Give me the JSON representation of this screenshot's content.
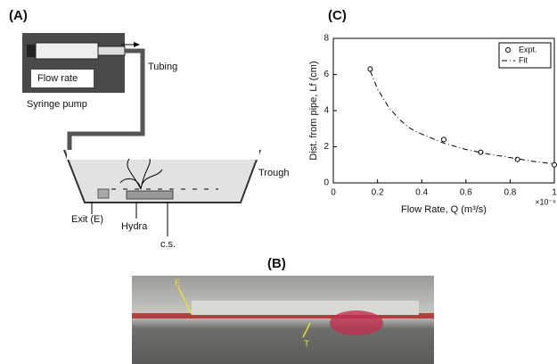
{
  "panels": {
    "a": "(A)",
    "b": "(B)",
    "c": "(C)"
  },
  "diagram": {
    "flow_rate": "Flow rate",
    "syringe_pump": "Syringe pump",
    "tubing": "Tubing",
    "trough": "Trough",
    "exit": "Exit (E)",
    "hydra": "Hydra",
    "cs": "c.s."
  },
  "photo": {
    "exit_label": "E",
    "hydra_label": "T"
  },
  "chart_data": {
    "type": "scatter",
    "xlabel": "Flow Rate, Q (m³/s)",
    "x_multiplier": "×10⁻⁶",
    "ylabel": "Dist. from pipe, Lf (cm)",
    "xlim": [
      0,
      1
    ],
    "xticks": [
      0,
      0.2,
      0.4,
      0.6,
      0.8,
      1
    ],
    "ylim": [
      0,
      8
    ],
    "yticks": [
      0,
      2,
      4,
      6,
      8
    ],
    "legend": "top-right",
    "series": [
      {
        "name": "Expt.",
        "color": "#000000",
        "marker": "circle",
        "x": [
          0.167,
          0.5,
          0.667,
          0.833,
          1
        ],
        "values": [
          6.3,
          2.4,
          1.7,
          1.3,
          1.0
        ]
      },
      {
        "name": "Fit",
        "color": "#000000",
        "linestyle": "dash-dot",
        "x": [
          0.167,
          0.2,
          0.25,
          0.3,
          0.35,
          0.4,
          0.5,
          0.6,
          0.7,
          0.8,
          0.9,
          1
        ],
        "values": [
          6.2,
          5.2,
          4.2,
          3.5,
          3.0,
          2.7,
          2.2,
          1.85,
          1.6,
          1.4,
          1.2,
          1.05
        ]
      }
    ]
  }
}
